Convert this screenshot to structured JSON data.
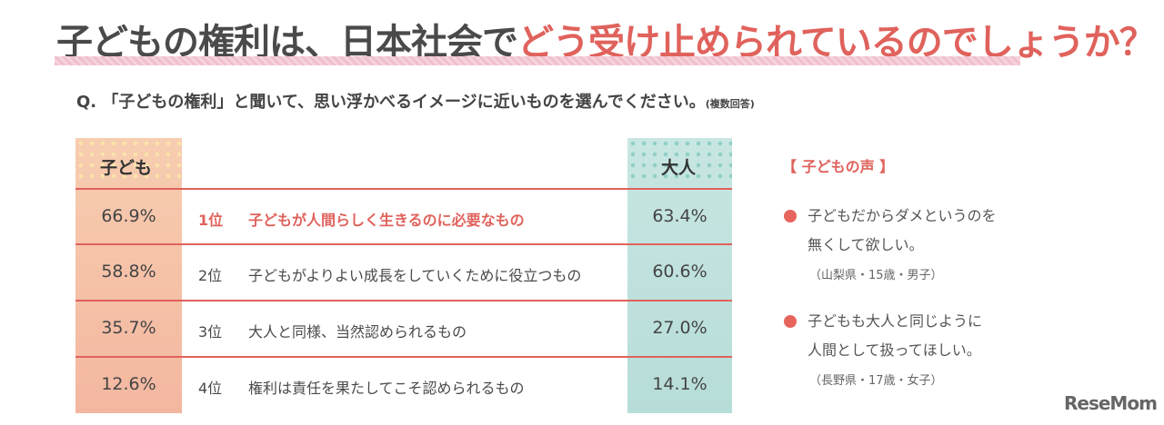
{
  "title": {
    "part1": "子どもの権利は、日本社会で",
    "part2": "どう受け止められているのでしょうか？"
  },
  "question": {
    "text": "Q. 「子どもの権利」と聞いて、思い浮かべるイメージに近いものを選んでください。",
    "note": "(複数回答)"
  },
  "chart_data": {
    "type": "table",
    "columns": [
      "子ども",
      "大人"
    ],
    "rows": [
      {
        "rank": "1位",
        "label": "子どもが人間らしく生きるのに必要なもの",
        "child": "66.9%",
        "adult": "63.4%"
      },
      {
        "rank": "2位",
        "label": "子どもがよりよい成長をしていくために役立つもの",
        "child": "58.8%",
        "adult": "60.6%"
      },
      {
        "rank": "3位",
        "label": "大人と同様、当然認められるもの",
        "child": "35.7%",
        "adult": "27.0%"
      },
      {
        "rank": "4位",
        "label": "権利は責任を果たしてこそ認められるもの",
        "child": "12.6%",
        "adult": "14.1%"
      }
    ]
  },
  "voices": {
    "heading": "【 子どもの声 】",
    "items": [
      {
        "line1": "子どもだからダメというのを",
        "line2": "無くして欲しい。",
        "who": "（山梨県・15歳・男子）"
      },
      {
        "line1": "子どもも大人と同じように",
        "line2": "人間として扱ってほしい。",
        "who": "（長野県・17歳・女子）"
      }
    ]
  },
  "logo": "ReseMom",
  "colors": {
    "accent": "#e0625c",
    "child_col": "#f5c2a8",
    "adult_col": "#bfe1dd"
  }
}
